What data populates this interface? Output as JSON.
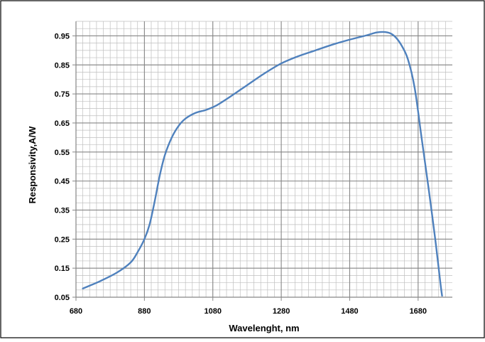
{
  "chart_data": {
    "type": "line",
    "title": "",
    "xlabel": "Wavelenght, nm",
    "ylabel": "Responsivity,A/W",
    "xlim": [
      680,
      1780
    ],
    "ylim": [
      0.05,
      1.0
    ],
    "x_ticks": [
      680,
      880,
      1080,
      1280,
      1480,
      1680
    ],
    "x_tick_labels": [
      "680",
      "880",
      "1080",
      "1280",
      "1480",
      "1680"
    ],
    "y_ticks": [
      0.05,
      0.15,
      0.25,
      0.35,
      0.45,
      0.55,
      0.65,
      0.75,
      0.85,
      0.95
    ],
    "y_tick_labels": [
      "0.05",
      "0.15",
      "0.25",
      "0.35",
      "0.45",
      "0.55",
      "0.65",
      "0.75",
      "0.85",
      "0.95"
    ],
    "x_minor_step": 20,
    "y_minor_step": 0.025,
    "grid": true,
    "legend": "none",
    "colors": {
      "line": "#4f81bd",
      "grid": "#bfbfbf",
      "axis": "#868686",
      "frame": "#000000"
    },
    "series": [
      {
        "values": [
          [
            700,
            0.08
          ],
          [
            750,
            0.105
          ],
          [
            800,
            0.135
          ],
          [
            840,
            0.17
          ],
          [
            860,
            0.205
          ],
          [
            880,
            0.25
          ],
          [
            895,
            0.3
          ],
          [
            910,
            0.38
          ],
          [
            925,
            0.47
          ],
          [
            940,
            0.54
          ],
          [
            960,
            0.6
          ],
          [
            980,
            0.64
          ],
          [
            1000,
            0.665
          ],
          [
            1030,
            0.685
          ],
          [
            1060,
            0.695
          ],
          [
            1090,
            0.71
          ],
          [
            1130,
            0.74
          ],
          [
            1180,
            0.78
          ],
          [
            1230,
            0.82
          ],
          [
            1280,
            0.855
          ],
          [
            1330,
            0.88
          ],
          [
            1380,
            0.9
          ],
          [
            1430,
            0.92
          ],
          [
            1480,
            0.937
          ],
          [
            1530,
            0.952
          ],
          [
            1560,
            0.962
          ],
          [
            1590,
            0.962
          ],
          [
            1610,
            0.95
          ],
          [
            1630,
            0.92
          ],
          [
            1650,
            0.87
          ],
          [
            1670,
            0.77
          ],
          [
            1690,
            0.6
          ],
          [
            1710,
            0.43
          ],
          [
            1730,
            0.25
          ],
          [
            1745,
            0.1
          ],
          [
            1750,
            0.055
          ]
        ]
      }
    ]
  }
}
